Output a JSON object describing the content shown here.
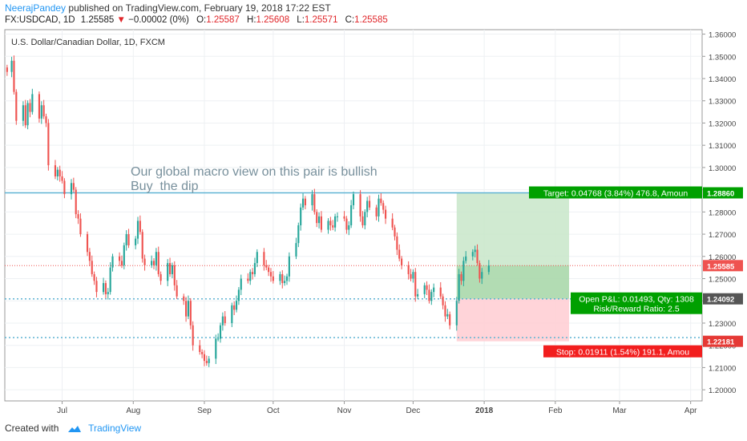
{
  "header": {
    "author": "NeerajPandey",
    "published": "published on TradingView.com, February 19, 2018 17:22 EST",
    "symbol": "FX:USDCAD, 1D",
    "last": "1.25585",
    "arrow": "▼",
    "change": "−0.00002 (0%)",
    "o_label": "O:",
    "o_value": "1.25587",
    "h_label": "H:",
    "h_value": "1.25608",
    "l_label": "L:",
    "l_value": "1.25571",
    "c_label": "C:",
    "c_value": "1.25585"
  },
  "footer": {
    "created_with": "Created with",
    "brand": "TradingView"
  },
  "colors": {
    "up": "#26a69a",
    "down": "#ef5350",
    "target_zone": "#c8e6c9",
    "stop_zone": "#ffcdd2",
    "line_blue": "#5fb3d3"
  },
  "chart_data": {
    "type": "candlestick",
    "title": "U.S. Dollar/Canadian Dollar, 1D, FXCM",
    "ylim": [
      1.195,
      1.362
    ],
    "y_ticks": [
      1.2,
      1.21,
      1.22,
      1.23,
      1.24,
      1.25,
      1.26,
      1.27,
      1.28,
      1.29,
      1.3,
      1.31,
      1.32,
      1.33,
      1.34,
      1.35,
      1.36
    ],
    "y_tick_labels": [
      "1.20000",
      "1.21000",
      "1.22000",
      "1.23000",
      "1.24000",
      "1.25000",
      "1.26000",
      "1.27000",
      "1.28000",
      "1.29000",
      "1.30000",
      "1.31000",
      "1.32000",
      "1.33000",
      "1.34000",
      "1.35000",
      "1.36000"
    ],
    "x_labels": [
      {
        "day": 24,
        "text": "Jul"
      },
      {
        "day": 55,
        "text": "Aug"
      },
      {
        "day": 86,
        "text": "Sep"
      },
      {
        "day": 116,
        "text": "Oct"
      },
      {
        "day": 147,
        "text": "Nov"
      },
      {
        "day": 177,
        "text": "Dec"
      },
      {
        "day": 208,
        "text": "2018"
      },
      {
        "day": 239,
        "text": "Feb"
      },
      {
        "day": 267,
        "text": "Mar"
      },
      {
        "day": 298,
        "text": "Apr"
      }
    ],
    "x_label_highlight": "2018",
    "x_range_days": [
      -1,
      303
    ],
    "candles": [
      [
        0,
        1.343
      ],
      [
        2,
        1.348
      ],
      [
        3,
        1.334
      ],
      [
        4,
        1.321
      ],
      [
        7,
        1.328
      ],
      [
        8,
        1.319
      ],
      [
        9,
        1.329
      ],
      [
        10,
        1.325
      ],
      [
        11,
        1.333
      ],
      [
        14,
        1.322
      ],
      [
        15,
        1.328
      ],
      [
        16,
        1.323
      ],
      [
        17,
        1.32
      ],
      [
        18,
        1.301
      ],
      [
        21,
        1.296
      ],
      [
        22,
        1.299
      ],
      [
        23,
        1.296
      ],
      [
        24,
        1.294
      ],
      [
        25,
        1.288
      ],
      [
        28,
        1.293
      ],
      [
        29,
        1.29
      ],
      [
        30,
        1.279
      ],
      [
        31,
        1.277
      ],
      [
        32,
        1.27
      ],
      [
        35,
        1.262
      ],
      [
        36,
        1.258
      ],
      [
        37,
        1.252
      ],
      [
        38,
        1.249
      ],
      [
        39,
        1.244
      ],
      [
        42,
        1.248
      ],
      [
        43,
        1.243
      ],
      [
        44,
        1.244
      ],
      [
        45,
        1.255
      ],
      [
        46,
        1.26
      ],
      [
        49,
        1.258
      ],
      [
        50,
        1.256
      ],
      [
        51,
        1.265
      ],
      [
        52,
        1.27
      ],
      [
        53,
        1.265
      ],
      [
        56,
        1.268
      ],
      [
        57,
        1.276
      ],
      [
        58,
        1.271
      ],
      [
        59,
        1.259
      ],
      [
        60,
        1.256
      ],
      [
        63,
        1.258
      ],
      [
        64,
        1.256
      ],
      [
        65,
        1.262
      ],
      [
        66,
        1.252
      ],
      [
        67,
        1.249
      ],
      [
        70,
        1.257
      ],
      [
        71,
        1.252
      ],
      [
        72,
        1.256
      ],
      [
        73,
        1.247
      ],
      [
        74,
        1.242
      ],
      [
        77,
        1.24
      ],
      [
        78,
        1.233
      ],
      [
        79,
        1.24
      ],
      [
        80,
        1.229
      ],
      [
        81,
        1.22
      ],
      [
        84,
        1.217
      ],
      [
        85,
        1.216
      ],
      [
        86,
        1.213
      ],
      [
        87,
        1.212
      ],
      [
        88,
        1.214
      ],
      [
        91,
        1.223
      ],
      [
        92,
        1.223
      ],
      [
        93,
        1.229
      ],
      [
        94,
        1.233
      ],
      [
        95,
        1.23
      ],
      [
        98,
        1.238
      ],
      [
        99,
        1.236
      ],
      [
        100,
        1.24
      ],
      [
        101,
        1.245
      ],
      [
        102,
        1.25
      ],
      [
        105,
        1.249
      ],
      [
        106,
        1.253
      ],
      [
        107,
        1.252
      ],
      [
        108,
        1.257
      ],
      [
        109,
        1.262
      ],
      [
        112,
        1.256
      ],
      [
        113,
        1.255
      ],
      [
        114,
        1.253
      ],
      [
        115,
        1.251
      ],
      [
        116,
        1.249
      ],
      [
        119,
        1.252
      ],
      [
        120,
        1.248
      ],
      [
        121,
        1.249
      ],
      [
        122,
        1.251
      ],
      [
        123,
        1.26
      ],
      [
        126,
        1.266
      ],
      [
        127,
        1.274
      ],
      [
        128,
        1.282
      ],
      [
        129,
        1.286
      ],
      [
        130,
        1.283
      ],
      [
        133,
        1.288
      ],
      [
        134,
        1.28
      ],
      [
        135,
        1.275
      ],
      [
        136,
        1.278
      ],
      [
        137,
        1.272
      ],
      [
        140,
        1.276
      ],
      [
        141,
        1.274
      ],
      [
        142,
        1.273
      ],
      [
        143,
        1.278
      ],
      [
        144,
        1.278
      ],
      [
        147,
        1.277
      ],
      [
        148,
        1.272
      ],
      [
        149,
        1.274
      ],
      [
        150,
        1.283
      ],
      [
        151,
        1.288
      ],
      [
        154,
        1.278
      ],
      [
        155,
        1.274
      ],
      [
        156,
        1.28
      ],
      [
        157,
        1.285
      ],
      [
        158,
        1.282
      ],
      [
        161,
        1.278
      ],
      [
        162,
        1.286
      ],
      [
        163,
        1.284
      ],
      [
        164,
        1.281
      ],
      [
        165,
        1.277
      ],
      [
        168,
        1.273
      ],
      [
        169,
        1.269
      ],
      [
        170,
        1.263
      ],
      [
        171,
        1.259
      ],
      [
        172,
        1.256
      ],
      [
        175,
        1.252
      ],
      [
        176,
        1.25
      ],
      [
        177,
        1.253
      ],
      [
        178,
        1.242
      ],
      [
        179,
        1.243
      ],
      [
        182,
        1.247
      ],
      [
        183,
        1.245
      ],
      [
        184,
        1.24
      ],
      [
        185,
        1.244
      ],
      [
        186,
        1.246
      ],
      [
        189,
        1.242
      ],
      [
        190,
        1.238
      ],
      [
        191,
        1.233
      ],
      [
        192,
        1.234
      ],
      [
        193,
        1.229
      ],
      [
        196,
        1.24
      ],
      [
        197,
        1.252
      ],
      [
        198,
        1.249
      ],
      [
        199,
        1.258
      ],
      [
        200,
        1.26
      ],
      [
        203,
        1.262
      ],
      [
        204,
        1.263
      ],
      [
        205,
        1.257
      ],
      [
        206,
        1.25
      ],
      [
        207,
        1.253
      ],
      [
        210,
        1.256
      ]
    ],
    "annotations": {
      "note_line1": "Our global macro view on this pair is bullish",
      "note_line2": "Buy  the dip",
      "target_label": "Target: 0.04768 (3.84%) 476.8, Amoun",
      "stop_label": "Stop: 0.01911 (1.54%) 191.1, Amou",
      "pnl_line1": "Open P&L: 0.01493, Qty: 1308",
      "pnl_line2": "Risk/Reward Ratio: 2.5"
    },
    "levels": {
      "resistance": 1.2886,
      "last_price": 1.25585,
      "entry": 1.24092,
      "stop": 1.22181,
      "stop_dotted": 1.2235,
      "trade_start_day": 196,
      "trade_end_day": 245,
      "price_tags": {
        "target": "1.28860",
        "last": "1.25585",
        "entry": "1.24092",
        "stop": "1.22181"
      }
    },
    "grid": true
  }
}
